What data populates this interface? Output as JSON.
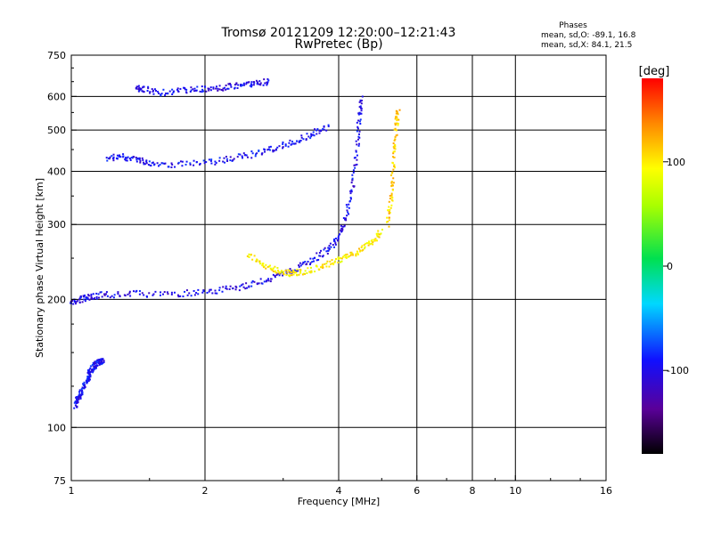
{
  "chart_data": {
    "type": "scatter",
    "title": "Tromsø 20121209 12:20:00–12:21:43",
    "subtitle": "RwPretec (Bp)",
    "xlabel": "Frequency [MHz]",
    "ylabel": "Stationary phase Virtual Height [km]",
    "x_scale": "log",
    "y_scale": "log",
    "xlim": [
      1,
      16
    ],
    "ylim": [
      75,
      750
    ],
    "x_ticks": [
      1,
      2,
      4,
      6,
      8,
      10,
      16
    ],
    "x_tick_labels": [
      "1",
      "2",
      "4",
      "6",
      "8",
      "10",
      "16"
    ],
    "y_ticks": [
      75,
      100,
      200,
      300,
      400,
      500,
      600,
      750
    ],
    "y_tick_labels": [
      "75",
      "100",
      "200",
      "300",
      "400",
      "500",
      "600",
      "750"
    ],
    "grid": true,
    "stats": {
      "heading": "Phases",
      "line_o": "mean, sd,O: -89.1, 16.8",
      "line_x": "mean, sd,X:  84.1, 21.5"
    },
    "colorbar": {
      "label": "[deg]",
      "range": [
        -180,
        180
      ],
      "ticks": [
        100,
        0,
        -100
      ],
      "tick_labels": [
        "100",
        "0",
        "-100"
      ]
    },
    "traces": [
      {
        "points": [
          [
            1.02,
            112
          ],
          [
            1.03,
            116
          ],
          [
            1.05,
            120
          ],
          [
            1.07,
            125
          ],
          [
            1.09,
            130
          ],
          [
            1.1,
            135
          ],
          [
            1.12,
            138
          ],
          [
            1.14,
            141
          ],
          [
            1.16,
            143
          ],
          [
            1.18,
            144
          ]
        ],
        "phase": -95
      },
      {
        "points": [
          [
            1.4,
            625
          ],
          [
            1.45,
            624
          ],
          [
            1.6,
            612
          ],
          [
            1.8,
            620
          ],
          [
            2.0,
            623
          ],
          [
            2.2,
            628
          ],
          [
            2.4,
            637
          ],
          [
            2.6,
            645
          ],
          [
            2.8,
            650
          ]
        ],
        "phase": -100
      },
      {
        "points": [
          [
            1.2,
            430
          ],
          [
            1.3,
            432
          ],
          [
            1.4,
            428
          ],
          [
            1.5,
            418
          ],
          [
            1.7,
            415
          ],
          [
            2.0,
            418
          ],
          [
            2.3,
            428
          ],
          [
            2.6,
            440
          ],
          [
            2.9,
            455
          ],
          [
            3.2,
            470
          ],
          [
            3.5,
            490
          ],
          [
            3.8,
            510
          ]
        ],
        "phase": -95
      },
      {
        "points": [
          [
            1.0,
            195
          ],
          [
            1.05,
            200
          ],
          [
            1.1,
            203
          ],
          [
            1.2,
            205
          ],
          [
            1.4,
            206
          ],
          [
            1.7,
            206
          ],
          [
            2.0,
            208
          ],
          [
            2.3,
            212
          ],
          [
            2.6,
            218
          ],
          [
            2.9,
            226
          ],
          [
            3.2,
            236
          ],
          [
            3.5,
            248
          ],
          [
            3.8,
            262
          ],
          [
            4.0,
            280
          ],
          [
            4.15,
            310
          ],
          [
            4.3,
            370
          ],
          [
            4.4,
            450
          ],
          [
            4.45,
            540
          ],
          [
            4.5,
            600
          ]
        ],
        "phase": -100
      },
      {
        "points": [
          [
            2.5,
            255
          ],
          [
            2.7,
            242
          ],
          [
            2.9,
            234
          ],
          [
            3.1,
            230
          ],
          [
            3.3,
            232
          ],
          [
            3.6,
            238
          ],
          [
            3.9,
            245
          ],
          [
            4.2,
            252
          ],
          [
            4.5,
            262
          ],
          [
            4.8,
            275
          ],
          [
            5.0,
            290
          ]
        ],
        "phase": 100
      },
      {
        "points": [
          [
            5.15,
            300
          ],
          [
            5.25,
            340
          ],
          [
            5.3,
            390
          ],
          [
            5.35,
            450
          ],
          [
            5.4,
            520
          ],
          [
            5.45,
            560
          ]
        ],
        "phase": 110
      }
    ]
  }
}
